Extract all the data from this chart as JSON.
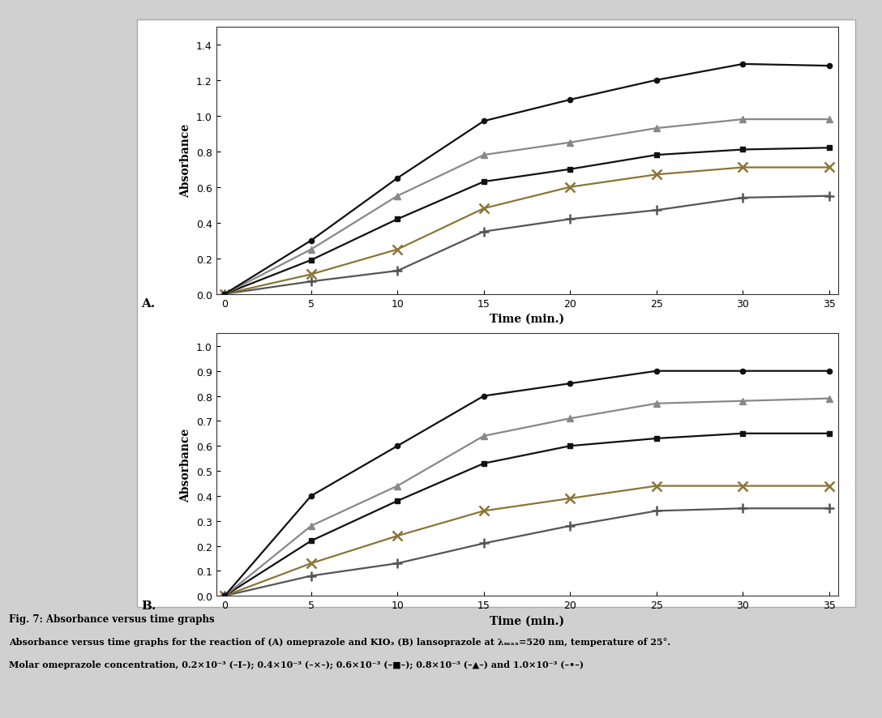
{
  "time": [
    0,
    5,
    10,
    15,
    20,
    25,
    30,
    35
  ],
  "A_plus": [
    0,
    0.07,
    0.13,
    0.35,
    0.42,
    0.47,
    0.54,
    0.55
  ],
  "A_cross": [
    0,
    0.11,
    0.25,
    0.48,
    0.6,
    0.67,
    0.71,
    0.71
  ],
  "A_square": [
    0,
    0.19,
    0.42,
    0.63,
    0.7,
    0.78,
    0.81,
    0.82
  ],
  "A_triangle": [
    0,
    0.25,
    0.55,
    0.78,
    0.85,
    0.93,
    0.98,
    0.98
  ],
  "A_dot": [
    0,
    0.3,
    0.65,
    0.97,
    1.09,
    1.2,
    1.29,
    1.28
  ],
  "B_plus": [
    0,
    0.08,
    0.13,
    0.21,
    0.28,
    0.34,
    0.35,
    0.35
  ],
  "B_cross": [
    0,
    0.13,
    0.24,
    0.34,
    0.39,
    0.44,
    0.44,
    0.44
  ],
  "B_square": [
    0,
    0.22,
    0.38,
    0.53,
    0.6,
    0.63,
    0.65,
    0.65
  ],
  "B_triangle": [
    0,
    0.28,
    0.44,
    0.64,
    0.71,
    0.77,
    0.78,
    0.79
  ],
  "B_dot": [
    0,
    0.4,
    0.6,
    0.8,
    0.85,
    0.9,
    0.9,
    0.9
  ],
  "color_plus": "#555555",
  "color_cross": "#8B7536",
  "color_square": "#111111",
  "color_triangle": "#888888",
  "color_dot": "#111111",
  "xlabel": "Time (min.)",
  "ylabel": "Absorbance",
  "label_A": "A.",
  "label_B": "B.",
  "fig_title": "Fig. 7: Absorbance versus time graphs",
  "fig_caption_line1": "Absorbance versus time graphs for the reaction of (A) omeprazole and KIO₃ (B) lansoprazole at λₘₐₓ=520 nm, temperature of 25°.",
  "fig_caption_line2": "Molar omeprazole concentration, 0.2×10⁻³ (–I–); 0.4×10⁻³ (–×–); 0.6×10⁻³ (–■–); 0.8×10⁻³ (–▲–) and 1.0×10⁻³ (–•–)",
  "A_ylim": [
    0,
    1.5
  ],
  "B_ylim": [
    0,
    1.05
  ],
  "A_yticks": [
    0,
    0.2,
    0.4,
    0.6,
    0.8,
    1.0,
    1.2,
    1.4
  ],
  "B_yticks": [
    0,
    0.1,
    0.2,
    0.3,
    0.4,
    0.5,
    0.6,
    0.7,
    0.8,
    0.9,
    1.0
  ],
  "xticks": [
    0,
    5,
    10,
    15,
    20,
    25,
    30,
    35
  ],
  "fig_bg": "#d0d0d0",
  "plot_bg": "#ffffff"
}
